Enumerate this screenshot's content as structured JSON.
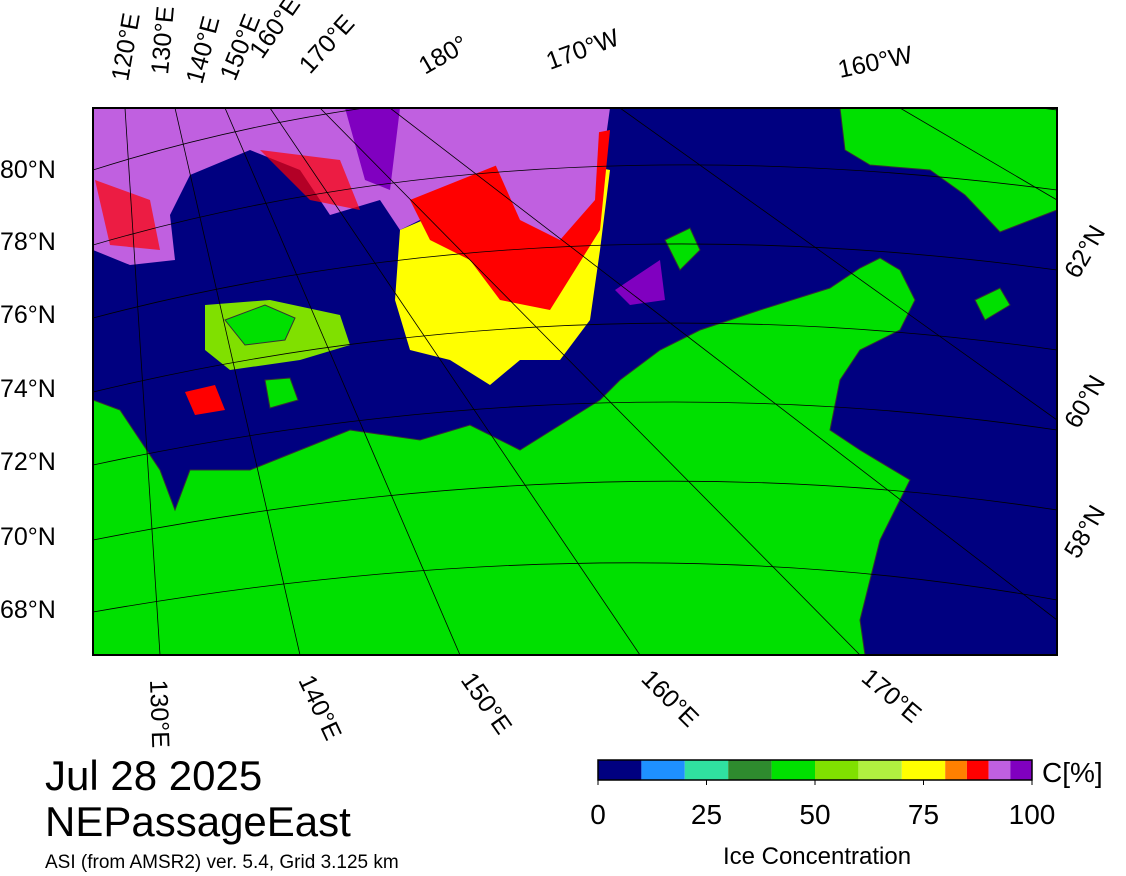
{
  "header": {
    "date": "Jul 28 2025",
    "region": "NEPassageEast",
    "source": "ASI (from AMSR2) ver. 5.4,  Grid 3.125 km"
  },
  "map": {
    "lat_labels_left": [
      "80°N",
      "78°N",
      "76°N",
      "74°N",
      "72°N",
      "70°N",
      "68°N"
    ],
    "lat_labels_right": [
      "62°N",
      "60°N",
      "58°N"
    ],
    "lon_labels_top": [
      "120°E",
      "130°E",
      "140°E",
      "150°E",
      "160°E",
      "170°E",
      "180°",
      "170°W",
      "160°W"
    ],
    "lon_labels_bottom": [
      "130°E",
      "140°E",
      "150°E",
      "160°E",
      "170°E"
    ]
  },
  "colorbar": {
    "label": "Ice Concentration",
    "unit": "C[%]",
    "bounds": [
      0,
      10,
      20,
      30,
      40,
      50,
      60,
      70,
      80,
      85,
      90,
      95,
      100
    ],
    "colors": [
      "#000080",
      "#1e90ff",
      "#30e0a0",
      "#2e8b2e",
      "#00e000",
      "#80e000",
      "#b0f040",
      "#ffff00",
      "#ff8000",
      "#ff0000",
      "#c060e0",
      "#8000c0"
    ],
    "ticks": [
      0,
      25,
      50,
      75,
      100
    ]
  }
}
